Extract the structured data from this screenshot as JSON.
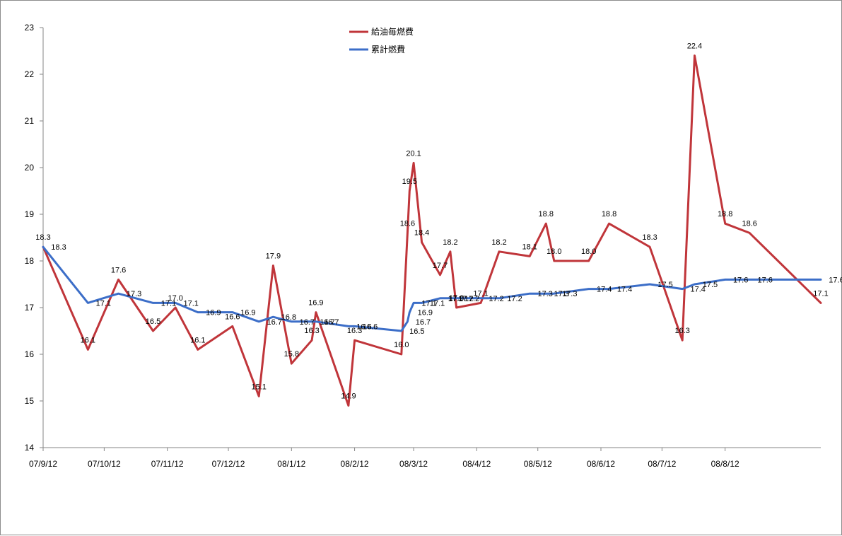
{
  "chart_data": {
    "type": "line",
    "title": "",
    "xlabel": "",
    "ylabel": "",
    "ylim": [
      14,
      23
    ],
    "y_ticks": [
      "14",
      "15",
      "16",
      "17",
      "18",
      "19",
      "20",
      "21",
      "22",
      "23"
    ],
    "xlim": [
      "2007-09-12",
      "2008-09-28"
    ],
    "x_ticks": [
      {
        "date": "2007-09-12",
        "label": "07/9/12"
      },
      {
        "date": "2007-10-12",
        "label": "07/10/12"
      },
      {
        "date": "2007-11-12",
        "label": "07/11/12"
      },
      {
        "date": "2007-12-12",
        "label": "07/12/12"
      },
      {
        "date": "2008-01-12",
        "label": "08/1/12"
      },
      {
        "date": "2008-02-12",
        "label": "08/2/12"
      },
      {
        "date": "2008-03-12",
        "label": "08/3/12"
      },
      {
        "date": "2008-04-12",
        "label": "08/4/12"
      },
      {
        "date": "2008-05-12",
        "label": "08/5/12"
      },
      {
        "date": "2008-06-12",
        "label": "08/6/12"
      },
      {
        "date": "2008-07-12",
        "label": "08/7/12"
      },
      {
        "date": "2008-08-12",
        "label": "08/8/12"
      }
    ],
    "grid": false,
    "legend_position": "top-center",
    "series": [
      {
        "name": "給油毎燃費",
        "color": "#c0353a",
        "points": [
          {
            "x": "2007-09-12",
            "y": 18.3,
            "label": "18.3"
          },
          {
            "x": "2007-10-04",
            "y": 16.1,
            "label": "16.1"
          },
          {
            "x": "2007-10-19",
            "y": 17.6,
            "label": "17.6"
          },
          {
            "x": "2007-11-05",
            "y": 16.5,
            "label": "16.5"
          },
          {
            "x": "2007-11-16",
            "y": 17.0,
            "label": "17.0"
          },
          {
            "x": "2007-11-27",
            "y": 16.1,
            "label": "16.1"
          },
          {
            "x": "2007-12-14",
            "y": 16.6,
            "label": "16.6"
          },
          {
            "x": "2007-12-27",
            "y": 15.1,
            "label": "15.1"
          },
          {
            "x": "2008-01-03",
            "y": 17.9,
            "label": "17.9"
          },
          {
            "x": "2008-01-12",
            "y": 15.8,
            "label": "15.8"
          },
          {
            "x": "2008-01-22",
            "y": 16.3,
            "label": "16.3"
          },
          {
            "x": "2008-01-24",
            "y": 16.9,
            "label": "16.9"
          },
          {
            "x": "2008-02-09",
            "y": 14.9,
            "label": "14.9"
          },
          {
            "x": "2008-02-12",
            "y": 16.3,
            "label": "16.3"
          },
          {
            "x": "2008-03-06",
            "y": 16.0,
            "label": "16.0"
          },
          {
            "x": "2008-03-09",
            "y": 18.6,
            "label": "18.6"
          },
          {
            "x": "2008-03-10",
            "y": 19.5,
            "label": "19.5"
          },
          {
            "x": "2008-03-12",
            "y": 20.1,
            "label": "20.1"
          },
          {
            "x": "2008-03-16",
            "y": 18.4,
            "label": "18.4"
          },
          {
            "x": "2008-03-25",
            "y": 17.7,
            "label": "17.7"
          },
          {
            "x": "2008-03-30",
            "y": 18.2,
            "label": "18.2"
          },
          {
            "x": "2008-04-02",
            "y": 17.0,
            "label": "17.0"
          },
          {
            "x": "2008-04-14",
            "y": 17.1,
            "label": "17.1"
          },
          {
            "x": "2008-04-23",
            "y": 18.2,
            "label": "18.2"
          },
          {
            "x": "2008-05-08",
            "y": 18.1,
            "label": "18.1"
          },
          {
            "x": "2008-05-16",
            "y": 18.8,
            "label": "18.8"
          },
          {
            "x": "2008-05-20",
            "y": 18.0,
            "label": "18.0"
          },
          {
            "x": "2008-06-06",
            "y": 18.0,
            "label": "18.0"
          },
          {
            "x": "2008-06-16",
            "y": 18.8,
            "label": "18.8"
          },
          {
            "x": "2008-07-06",
            "y": 18.3,
            "label": "18.3"
          },
          {
            "x": "2008-07-22",
            "y": 16.3,
            "label": "16.3"
          },
          {
            "x": "2008-07-28",
            "y": 22.4,
            "label": "22.4"
          },
          {
            "x": "2008-08-12",
            "y": 18.8,
            "label": "18.8"
          },
          {
            "x": "2008-08-24",
            "y": 18.6,
            "label": "18.6"
          },
          {
            "x": "2008-09-28",
            "y": 17.1,
            "label": "17.1"
          }
        ]
      },
      {
        "name": "累計燃費",
        "color": "#3c6ec8",
        "points": [
          {
            "x": "2007-09-12",
            "y": 18.3,
            "label": "18.3"
          },
          {
            "x": "2007-10-04",
            "y": 17.1,
            "label": "17.1"
          },
          {
            "x": "2007-10-19",
            "y": 17.3,
            "label": "17.3"
          },
          {
            "x": "2007-11-05",
            "y": 17.1,
            "label": "17.1"
          },
          {
            "x": "2007-11-16",
            "y": 17.1,
            "label": "17.1"
          },
          {
            "x": "2007-11-27",
            "y": 16.9,
            "label": "16.9"
          },
          {
            "x": "2007-12-14",
            "y": 16.9,
            "label": "16.9"
          },
          {
            "x": "2007-12-27",
            "y": 16.7,
            "label": "16.7"
          },
          {
            "x": "2008-01-03",
            "y": 16.8,
            "label": "16.8"
          },
          {
            "x": "2008-01-12",
            "y": 16.7,
            "label": "16.7"
          },
          {
            "x": "2008-01-22",
            "y": 16.7,
            "label": "16.7"
          },
          {
            "x": "2008-01-24",
            "y": 16.7,
            "label": "16.7"
          },
          {
            "x": "2008-02-09",
            "y": 16.6,
            "label": "16.6"
          },
          {
            "x": "2008-02-12",
            "y": 16.6,
            "label": "16.6"
          },
          {
            "x": "2008-03-06",
            "y": 16.5,
            "label": "16.5"
          },
          {
            "x": "2008-03-09",
            "y": 16.7,
            "label": "16.7"
          },
          {
            "x": "2008-03-10",
            "y": 16.9,
            "label": "16.9"
          },
          {
            "x": "2008-03-12",
            "y": 17.1,
            "label": "17.1"
          },
          {
            "x": "2008-03-16",
            "y": 17.1,
            "label": "17.1"
          },
          {
            "x": "2008-03-25",
            "y": 17.2,
            "label": "17.2"
          },
          {
            "x": "2008-03-30",
            "y": 17.2,
            "label": "17.2"
          },
          {
            "x": "2008-04-02",
            "y": 17.2,
            "label": "17.2"
          },
          {
            "x": "2008-04-14",
            "y": 17.2,
            "label": "17.2"
          },
          {
            "x": "2008-04-23",
            "y": 17.2,
            "label": "17.2"
          },
          {
            "x": "2008-05-08",
            "y": 17.3,
            "label": "17.3"
          },
          {
            "x": "2008-05-16",
            "y": 17.3,
            "label": "17.3"
          },
          {
            "x": "2008-05-20",
            "y": 17.3,
            "label": "17.3"
          },
          {
            "x": "2008-06-06",
            "y": 17.4,
            "label": "17.4"
          },
          {
            "x": "2008-06-16",
            "y": 17.4,
            "label": "17.4"
          },
          {
            "x": "2008-07-06",
            "y": 17.5,
            "label": "17.5"
          },
          {
            "x": "2008-07-22",
            "y": 17.4,
            "label": "17.4"
          },
          {
            "x": "2008-07-28",
            "y": 17.5,
            "label": "17.5"
          },
          {
            "x": "2008-08-12",
            "y": 17.6,
            "label": "17.6"
          },
          {
            "x": "2008-08-24",
            "y": 17.6,
            "label": "17.6"
          },
          {
            "x": "2008-09-28",
            "y": 17.6,
            "label": "17.6"
          }
        ]
      }
    ]
  }
}
